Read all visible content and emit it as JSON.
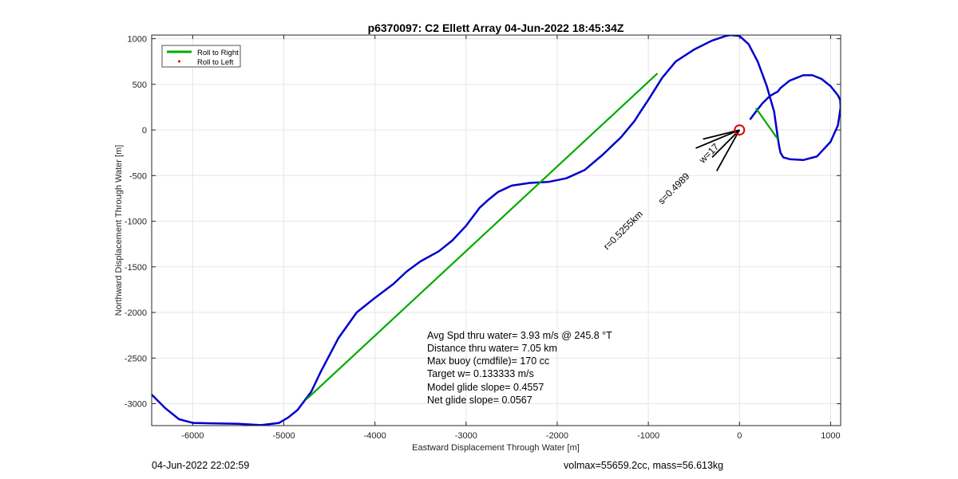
{
  "chart_data": {
    "type": "line",
    "title": "p6370097: C2 Ellett Array 04-Jun-2022 18:45:34Z",
    "xlabel": "Eastward Displacement Through Water [m]",
    "ylabel": "Northward Displacement Through Water [m]",
    "xlim": [
      -6450,
      1110
    ],
    "ylim": [
      -3240,
      1040
    ],
    "xticks": [
      -6000,
      -5000,
      -4000,
      -3000,
      -2000,
      -1000,
      0,
      1000
    ],
    "yticks": [
      -3000,
      -2500,
      -2000,
      -1500,
      -1000,
      -500,
      0,
      500,
      1000
    ],
    "grid": true,
    "legend": {
      "position": "top-left",
      "entries": [
        {
          "label": "Roll to Right",
          "color": "#00aa00",
          "style": "line"
        },
        {
          "label": "Roll to Left",
          "color": "#dd0000",
          "style": "dot"
        }
      ]
    },
    "series": [
      {
        "name": "track",
        "color": "#0000cc",
        "x": [
          -6450,
          -6300,
          -6150,
          -6000,
          -5800,
          -5500,
          -5250,
          -5050,
          -4950,
          -4850,
          -4700,
          -4600,
          -4500,
          -4400,
          -4200,
          -4000,
          -3800,
          -3650,
          -3500,
          -3300,
          -3150,
          -3000,
          -2850,
          -2750,
          -2650,
          -2500,
          -2300,
          -2100,
          -1900,
          -1700,
          -1500,
          -1300,
          -1150,
          -1100,
          -1000,
          -850,
          -700,
          -500,
          -300,
          -150,
          -100,
          0,
          100,
          200,
          300,
          380,
          420,
          430,
          440,
          450,
          480,
          550,
          700,
          850,
          1000,
          1080,
          1110,
          1105,
          1080,
          1000,
          900,
          800,
          700,
          550,
          450,
          420,
          400,
          330,
          250,
          180,
          120
        ],
        "y": [
          -2900,
          -3050,
          -3170,
          -3210,
          -3215,
          -3220,
          -3235,
          -3210,
          -3150,
          -3070,
          -2870,
          -2660,
          -2470,
          -2280,
          -2000,
          -1840,
          -1690,
          -1550,
          -1440,
          -1330,
          -1210,
          -1050,
          -850,
          -760,
          -680,
          -610,
          -580,
          -570,
          -530,
          -440,
          -270,
          -80,
          100,
          180,
          330,
          570,
          750,
          880,
          980,
          1030,
          1040,
          1030,
          940,
          750,
          480,
          200,
          -80,
          -150,
          -200,
          -250,
          -300,
          -320,
          -330,
          -290,
          -130,
          50,
          250,
          330,
          380,
          480,
          560,
          600,
          600,
          540,
          460,
          420,
          410,
          370,
          290,
          200,
          120
        ]
      },
      {
        "name": "roll to right",
        "color": "#00aa00",
        "segments": [
          {
            "x": [
              -4750,
              -900
            ],
            "y": [
              -2950,
              620
            ]
          },
          {
            "x": [
              180,
              420
            ],
            "y": [
              240,
              -100
            ]
          }
        ]
      }
    ],
    "markers": [
      {
        "label": "start",
        "x": 0,
        "y": 0,
        "color": "#dd0000",
        "shape": "circle"
      }
    ],
    "vectors": [
      {
        "x": [
          0,
          -480
        ],
        "y": [
          0,
          -200
        ]
      },
      {
        "x": [
          0,
          -250
        ],
        "y": [
          0,
          -450
        ]
      },
      {
        "x": [
          0,
          -400
        ],
        "y": [
          0,
          -100
        ]
      },
      {
        "x": [
          0,
          -300
        ],
        "y": [
          0,
          -300
        ]
      }
    ],
    "rotated_labels": [
      {
        "text": "r=0.5255km",
        "x": -1450,
        "y": -1320,
        "angle": -45
      },
      {
        "text": "s=0.4989",
        "x": -850,
        "y": -820,
        "angle": -45
      },
      {
        "text": "w=17",
        "x": -400,
        "y": -370,
        "angle": -45
      }
    ],
    "annotations": [
      "Avg Spd thru water=  3.93 m/s @ 245.8 °T",
      "Distance thru water=  7.05 km",
      "Max buoy (cmdfile)= 170 cc",
      "Target w= 0.133333 m/s",
      "Model glide slope= 0.4557",
      "Net glide slope= 0.0567"
    ]
  },
  "footer": {
    "left": "04-Jun-2022 22:02:59",
    "right": "volmax=55659.2cc, mass=56.613kg"
  }
}
